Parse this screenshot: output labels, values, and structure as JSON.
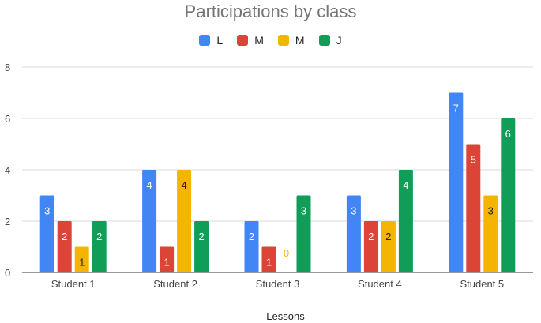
{
  "chart_data": {
    "type": "bar",
    "title": "Participations by class",
    "xlabel": "Lessons",
    "ylabel": "",
    "ylim": [
      0,
      8
    ],
    "yticks": [
      0,
      2,
      4,
      6,
      8
    ],
    "grid": true,
    "legend_position": "top",
    "categories": [
      "Student 1",
      "Student 2",
      "Student 3",
      "Student 4",
      "Student 5"
    ],
    "series": [
      {
        "name": "L",
        "color": "#4285f4",
        "label_color": "#ffffff",
        "values": [
          3,
          4,
          2,
          3,
          7
        ]
      },
      {
        "name": "M",
        "color": "#db4437",
        "label_color": "#ffffff",
        "values": [
          2,
          1,
          1,
          2,
          5
        ]
      },
      {
        "name": "M",
        "color": "#f4b400",
        "label_color": "#222222",
        "values": [
          1,
          4,
          0,
          2,
          3
        ]
      },
      {
        "name": "J",
        "color": "#0f9d58",
        "label_color": "#ffffff",
        "values": [
          2,
          2,
          3,
          4,
          6
        ]
      }
    ]
  }
}
